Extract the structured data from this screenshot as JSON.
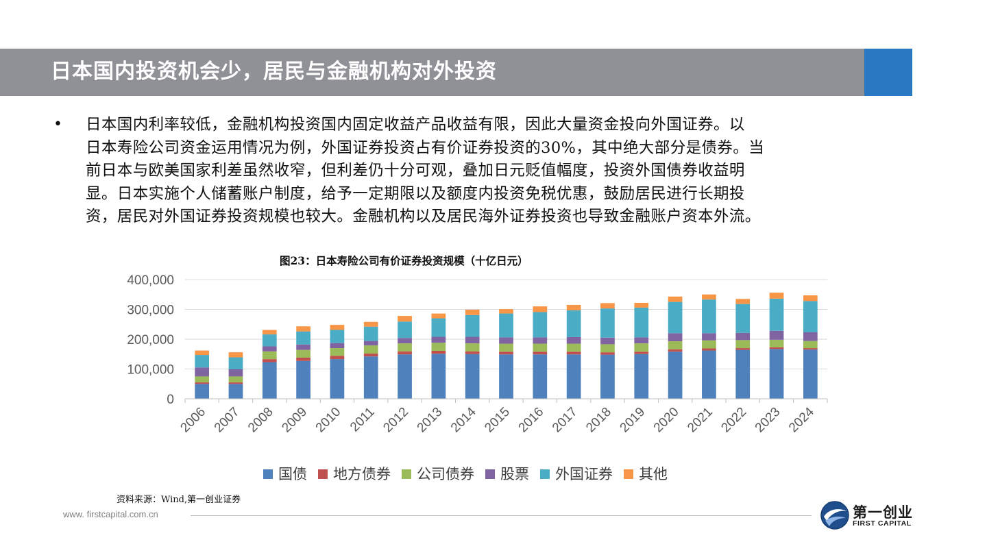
{
  "header": {
    "title": "日本国内投资机会少，居民与金融机构对外投资"
  },
  "body": {
    "bullet": "•",
    "lines": [
      "日本国内利率较低，金融机构投资国内固定收益产品收益有限，因此大量资金投向外国证券。以",
      "日本寿险公司资金运用情况为例，外国证券投资占有价证券投资的30%，其中绝大部分是债券。当",
      "前日本与欧美国家利差虽然收窄，但利差仍十分可观，叠加日元贬值幅度，投资外国债券收益明",
      "显。日本实施个人储蓄账户制度，给予一定期限以及额度内投资免税优惠，鼓励居民进行长期投",
      "资，居民对外国证券投资规模也较大。金融机构以及居民海外证券投资也导致金融账户资本外流。"
    ]
  },
  "chart_data": {
    "type": "bar",
    "stacked": true,
    "title": "图23：日本寿险公司有价证券投资规模（十亿日元）",
    "xlabel": "",
    "ylabel": "",
    "ylim": [
      0,
      400000
    ],
    "yticks": [
      0,
      100000,
      200000,
      300000,
      400000
    ],
    "ytick_labels": [
      "0",
      "100,000",
      "200,000",
      "300,000",
      "400,000"
    ],
    "grid": true,
    "legend_position": "bottom",
    "categories": [
      "2006",
      "2007",
      "2008",
      "2009",
      "2010",
      "2011",
      "2012",
      "2013",
      "2014",
      "2015",
      "2016",
      "2017",
      "2018",
      "2019",
      "2020",
      "2021",
      "2022",
      "2023",
      "2024"
    ],
    "series": [
      {
        "name": "国债",
        "color": "#4f81bd",
        "values": [
          50000,
          50000,
          123000,
          127000,
          133000,
          142000,
          149000,
          151000,
          150000,
          149000,
          149000,
          149000,
          148000,
          150000,
          158000,
          162000,
          164000,
          167000,
          165000
        ]
      },
      {
        "name": "地方债券",
        "color": "#c0504d",
        "values": [
          5000,
          5000,
          10000,
          11000,
          11000,
          10000,
          10000,
          10000,
          9000,
          9000,
          9000,
          9000,
          8000,
          8000,
          8000,
          7000,
          6000,
          6000,
          5000
        ]
      },
      {
        "name": "公司债券",
        "color": "#9bbb59",
        "values": [
          20000,
          20000,
          26000,
          26000,
          26000,
          27000,
          27000,
          27000,
          27000,
          27000,
          27000,
          27000,
          27000,
          28000,
          27000,
          27000,
          27000,
          25000,
          24000
        ]
      },
      {
        "name": "股票",
        "color": "#8064a2",
        "values": [
          30000,
          24000,
          17000,
          18000,
          17000,
          15000,
          18000,
          20000,
          22000,
          21000,
          21000,
          22000,
          22000,
          20000,
          27000,
          24000,
          24000,
          30000,
          29000
        ]
      },
      {
        "name": "外国证券",
        "color": "#4bacc6",
        "values": [
          42000,
          40000,
          40000,
          44000,
          44000,
          48000,
          55000,
          62000,
          73000,
          80000,
          85000,
          90000,
          98000,
          100000,
          105000,
          113000,
          97000,
          108000,
          105000
        ]
      },
      {
        "name": "其他",
        "color": "#f79646",
        "values": [
          15000,
          17000,
          15000,
          17000,
          17000,
          16000,
          19000,
          16000,
          18000,
          15000,
          19000,
          18000,
          18000,
          16000,
          18000,
          17000,
          17000,
          20000,
          19000
        ]
      }
    ]
  },
  "footer": {
    "source": "资料来源：Wind,第一创业证券",
    "website": "www. firstcapital.com.cn",
    "logo_cn": "第一创业",
    "logo_en": "FIRST CAPITAL"
  },
  "colors": {
    "title_bar": "#8f9196",
    "title_accent": "#2a78c2"
  }
}
